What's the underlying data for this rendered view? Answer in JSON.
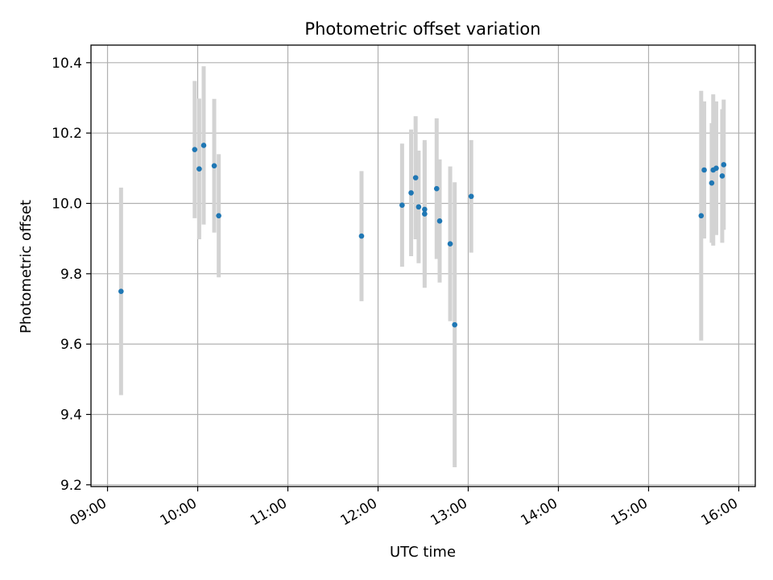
{
  "chart_data": {
    "type": "scatter",
    "title": "Photometric offset variation",
    "xlabel": "UTC time",
    "ylabel": "Photometric offset",
    "x_ticks": [
      "09:00",
      "10:00",
      "11:00",
      "12:00",
      "13:00",
      "14:00",
      "15:00",
      "16:00"
    ],
    "y_ticks": [
      "9.2",
      "9.4",
      "9.6",
      "9.8",
      "10.0",
      "10.2",
      "10.4"
    ],
    "xlim": [
      "08:49",
      "16:11"
    ],
    "ylim": [
      9.195,
      10.45
    ],
    "grid": true,
    "marker_color": "#1f77b4",
    "errorbar_color": "#d3d3d3",
    "series": [
      {
        "points": [
          {
            "x": "09:09",
            "y": 9.75,
            "err": 0.295
          },
          {
            "x": "09:58",
            "y": 10.153,
            "err": 0.195
          },
          {
            "x": "10:01",
            "y": 10.098,
            "err": 0.2
          },
          {
            "x": "10:04",
            "y": 10.165,
            "err": 0.225
          },
          {
            "x": "10:11",
            "y": 10.107,
            "err": 0.19
          },
          {
            "x": "10:14",
            "y": 9.965,
            "err": 0.175
          },
          {
            "x": "11:49",
            "y": 9.907,
            "err": 0.185
          },
          {
            "x": "12:16",
            "y": 9.995,
            "err": 0.175
          },
          {
            "x": "12:22",
            "y": 10.03,
            "err": 0.18
          },
          {
            "x": "12:25",
            "y": 10.073,
            "err": 0.175
          },
          {
            "x": "12:27",
            "y": 9.99,
            "err": 0.16
          },
          {
            "x": "12:31",
            "y": 9.983,
            "err": 0.19
          },
          {
            "x": "12:31",
            "y": 9.97,
            "err": 0.21
          },
          {
            "x": "12:39",
            "y": 10.042,
            "err": 0.2
          },
          {
            "x": "12:41",
            "y": 9.95,
            "err": 0.175
          },
          {
            "x": "12:48",
            "y": 9.885,
            "err": 0.22
          },
          {
            "x": "12:51",
            "y": 9.655,
            "err": 0.405
          },
          {
            "x": "13:02",
            "y": 10.02,
            "err": 0.16
          },
          {
            "x": "15:35",
            "y": 9.965,
            "err": 0.355
          },
          {
            "x": "15:37",
            "y": 10.095,
            "err": 0.195
          },
          {
            "x": "15:42",
            "y": 10.058,
            "err": 0.17
          },
          {
            "x": "15:43",
            "y": 10.095,
            "err": 0.215
          },
          {
            "x": "15:45",
            "y": 10.1,
            "err": 0.19
          },
          {
            "x": "15:49",
            "y": 10.078,
            "err": 0.19
          },
          {
            "x": "15:50",
            "y": 10.11,
            "err": 0.185
          }
        ]
      }
    ]
  }
}
